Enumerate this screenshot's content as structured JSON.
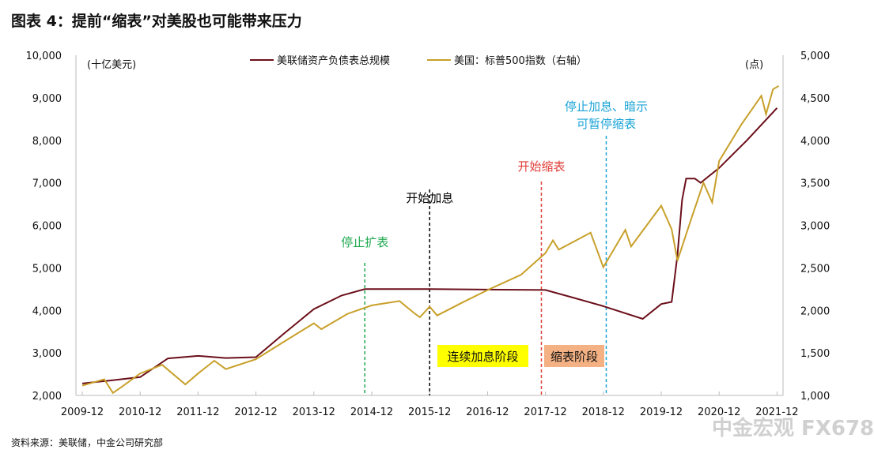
{
  "title": "图表 4：提前“缩表”对美股也可能带来压力",
  "source": "资料来源：美联储，中金公司研究部",
  "watermark": "中金宏观 FX678",
  "chart_data": {
    "type": "line",
    "left_unit": "(十亿美元)",
    "right_unit": "(点)",
    "left_ylim": [
      2000,
      10000
    ],
    "right_ylim": [
      1000,
      5000
    ],
    "left_ticks": [
      "2,000",
      "3,000",
      "4,000",
      "5,000",
      "6,000",
      "7,000",
      "8,000",
      "9,000",
      "10,000"
    ],
    "right_ticks": [
      "1,000",
      "1,500",
      "2,000",
      "2,500",
      "3,000",
      "3,500",
      "4,000",
      "4,500",
      "5,000"
    ],
    "x_ticks": [
      "2009-12",
      "2010-12",
      "2011-12",
      "2012-12",
      "2013-12",
      "2014-12",
      "2015-12",
      "2016-12",
      "2017-12",
      "2018-12",
      "2019-12",
      "2020-12",
      "2021-12"
    ],
    "series": [
      {
        "name": "美联储资产负债表总规模",
        "axis": "left",
        "color": "#6b0f1a",
        "points": [
          [
            2009.92,
            2280
          ],
          [
            2010.4,
            2350
          ],
          [
            2010.92,
            2430
          ],
          [
            2011.4,
            2870
          ],
          [
            2011.92,
            2930
          ],
          [
            2012.4,
            2880
          ],
          [
            2012.92,
            2900
          ],
          [
            2013.4,
            3450
          ],
          [
            2013.92,
            4030
          ],
          [
            2014.4,
            4350
          ],
          [
            2014.8,
            4500
          ],
          [
            2015.92,
            4500
          ],
          [
            2016.92,
            4490
          ],
          [
            2017.92,
            4480
          ],
          [
            2018.4,
            4300
          ],
          [
            2018.92,
            4100
          ],
          [
            2019.6,
            3800
          ],
          [
            2019.92,
            4150
          ],
          [
            2020.1,
            4200
          ],
          [
            2020.2,
            5300
          ],
          [
            2020.28,
            6600
          ],
          [
            2020.35,
            7100
          ],
          [
            2020.5,
            7100
          ],
          [
            2020.6,
            7000
          ],
          [
            2020.92,
            7350
          ],
          [
            2021.4,
            8000
          ],
          [
            2021.92,
            8760
          ]
        ]
      },
      {
        "name": "美国：标普500指数（右轴）",
        "axis": "right",
        "color": "#c8a02a",
        "points": [
          [
            2009.92,
            1115
          ],
          [
            2010.3,
            1190
          ],
          [
            2010.45,
            1030
          ],
          [
            2010.6,
            1100
          ],
          [
            2010.92,
            1258
          ],
          [
            2011.3,
            1360
          ],
          [
            2011.7,
            1130
          ],
          [
            2011.92,
            1258
          ],
          [
            2012.2,
            1408
          ],
          [
            2012.4,
            1310
          ],
          [
            2012.92,
            1426
          ],
          [
            2013.4,
            1630
          ],
          [
            2013.92,
            1848
          ],
          [
            2014.05,
            1780
          ],
          [
            2014.5,
            1960
          ],
          [
            2014.92,
            2059
          ],
          [
            2015.4,
            2110
          ],
          [
            2015.65,
            1970
          ],
          [
            2015.75,
            1920
          ],
          [
            2015.92,
            2044
          ],
          [
            2016.05,
            1940
          ],
          [
            2016.5,
            2098
          ],
          [
            2016.92,
            2239
          ],
          [
            2017.5,
            2420
          ],
          [
            2017.92,
            2674
          ],
          [
            2018.05,
            2824
          ],
          [
            2018.15,
            2714
          ],
          [
            2018.7,
            2914
          ],
          [
            2018.92,
            2507
          ],
          [
            2019.3,
            2946
          ],
          [
            2019.4,
            2752
          ],
          [
            2019.92,
            3231
          ],
          [
            2020.1,
            2954
          ],
          [
            2020.2,
            2585
          ],
          [
            2020.45,
            3100
          ],
          [
            2020.65,
            3500
          ],
          [
            2020.8,
            3270
          ],
          [
            2020.92,
            3756
          ],
          [
            2021.3,
            4181
          ],
          [
            2021.65,
            4523
          ],
          [
            2021.73,
            4307
          ],
          [
            2021.85,
            4600
          ],
          [
            2021.95,
            4640
          ]
        ]
      }
    ],
    "events": [
      {
        "label": "停止扩表",
        "x": 2014.8,
        "color": "#1fa84f"
      },
      {
        "label": "开始加息",
        "x": 2015.92,
        "color": "#000000"
      },
      {
        "label": "开始缩表",
        "x": 2017.85,
        "color": "#e0403a"
      },
      {
        "label": "停止加息、暗示",
        "label2": "可暂停缩表",
        "x": 2018.97,
        "color": "#1aa3d6"
      }
    ],
    "phases": [
      {
        "label": "连续加息阶段",
        "color": "#ffff00"
      },
      {
        "label": "缩表阶段",
        "color": "#f4b183"
      }
    ]
  }
}
